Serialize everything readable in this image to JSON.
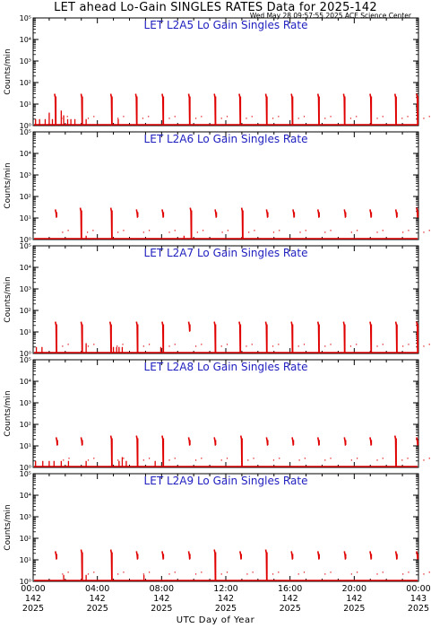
{
  "header": {
    "title": "LET ahead Lo-Gain SINGLES RATES Data for 2025-142",
    "timestamp": "Wed May 28 09:57:55 2025 ACE Science Center"
  },
  "colors": {
    "data": "#e00000",
    "panel_title": "#1f1fc0",
    "axes": "#000000"
  },
  "chart_data": [
    {
      "type": "line",
      "title": "LET L2A5 Lo Gain Singles Rate",
      "ylabel": "Counts/min",
      "yscale": "log",
      "ylim": [
        1,
        100000
      ],
      "xlim": [
        0,
        24
      ],
      "spikes": [
        {
          "x": 1.4,
          "y": 30,
          "base": 1
        },
        {
          "x": 3.05,
          "y": 30,
          "base": 1
        },
        {
          "x": 4.9,
          "y": 30,
          "base": 1
        },
        {
          "x": 6.45,
          "y": 30,
          "base": 1
        },
        {
          "x": 8.1,
          "y": 30,
          "base": 1
        },
        {
          "x": 9.75,
          "y": 30,
          "base": 1
        },
        {
          "x": 11.35,
          "y": 30,
          "base": 1
        },
        {
          "x": 12.9,
          "y": 30,
          "base": 1
        },
        {
          "x": 14.55,
          "y": 30,
          "base": 1
        },
        {
          "x": 16.15,
          "y": 30,
          "base": 1
        },
        {
          "x": 17.8,
          "y": 30,
          "base": 1
        },
        {
          "x": 19.4,
          "y": 30,
          "base": 1
        },
        {
          "x": 21.05,
          "y": 30,
          "base": 1
        },
        {
          "x": 22.6,
          "y": 30,
          "base": 1
        },
        {
          "x": 23.95,
          "y": 30,
          "base": 1
        }
      ],
      "bursts": [
        {
          "x": 0.15,
          "y": 2
        },
        {
          "x": 0.4,
          "y": 2
        },
        {
          "x": 0.75,
          "y": 2
        },
        {
          "x": 1.0,
          "y": 4
        },
        {
          "x": 1.2,
          "y": 2
        },
        {
          "x": 1.75,
          "y": 5
        },
        {
          "x": 1.9,
          "y": 3
        },
        {
          "x": 2.15,
          "y": 2
        },
        {
          "x": 2.35,
          "y": 2
        },
        {
          "x": 2.6,
          "y": 2
        },
        {
          "x": 3.3,
          "y": 2
        },
        {
          "x": 5.3,
          "y": 2
        }
      ]
    },
    {
      "type": "line",
      "title": "LET L2A6 Lo Gain Singles Rate",
      "ylabel": "Counts/min",
      "yscale": "log",
      "ylim": [
        1,
        100000
      ],
      "xlim": [
        0,
        24
      ],
      "spikes": [
        {
          "x": 1.45,
          "y": 25,
          "base": 10
        },
        {
          "x": 3.0,
          "y": 30,
          "base": 1
        },
        {
          "x": 4.9,
          "y": 30,
          "base": 1
        },
        {
          "x": 6.5,
          "y": 25,
          "base": 10
        },
        {
          "x": 8.1,
          "y": 25,
          "base": 10
        },
        {
          "x": 9.85,
          "y": 30,
          "base": 1
        },
        {
          "x": 11.4,
          "y": 25,
          "base": 10
        },
        {
          "x": 13.05,
          "y": 30,
          "base": 1
        },
        {
          "x": 14.6,
          "y": 25,
          "base": 10
        },
        {
          "x": 16.25,
          "y": 25,
          "base": 10
        },
        {
          "x": 17.8,
          "y": 25,
          "base": 10
        },
        {
          "x": 19.45,
          "y": 25,
          "base": 10
        },
        {
          "x": 21.05,
          "y": 25,
          "base": 10
        },
        {
          "x": 22.65,
          "y": 25,
          "base": 10
        },
        {
          "x": 23.95,
          "y": 30,
          "base": 10
        }
      ],
      "bursts": [
        {
          "x": 3.3,
          "y": 1.5
        },
        {
          "x": 9.4,
          "y": 1.5
        }
      ]
    },
    {
      "type": "line",
      "title": "LET L2A7 Lo Gain Singles Rate",
      "ylabel": "Counts/min",
      "yscale": "log",
      "ylim": [
        1,
        100000
      ],
      "xlim": [
        0,
        24
      ],
      "spikes": [
        {
          "x": 1.45,
          "y": 30,
          "base": 1
        },
        {
          "x": 3.05,
          "y": 30,
          "base": 1
        },
        {
          "x": 4.85,
          "y": 30,
          "base": 1
        },
        {
          "x": 6.5,
          "y": 30,
          "base": 1
        },
        {
          "x": 8.1,
          "y": 30,
          "base": 1
        },
        {
          "x": 9.75,
          "y": 30,
          "base": 10
        },
        {
          "x": 11.35,
          "y": 30,
          "base": 1
        },
        {
          "x": 12.9,
          "y": 30,
          "base": 1
        },
        {
          "x": 14.55,
          "y": 30,
          "base": 1
        },
        {
          "x": 16.15,
          "y": 30,
          "base": 1
        },
        {
          "x": 17.8,
          "y": 30,
          "base": 1
        },
        {
          "x": 19.4,
          "y": 30,
          "base": 1
        },
        {
          "x": 21.05,
          "y": 30,
          "base": 1
        },
        {
          "x": 22.65,
          "y": 30,
          "base": 1
        },
        {
          "x": 23.95,
          "y": 30,
          "base": 1
        }
      ],
      "bursts": [
        {
          "x": 0.2,
          "y": 2
        },
        {
          "x": 0.55,
          "y": 2
        },
        {
          "x": 3.3,
          "y": 3
        },
        {
          "x": 5.0,
          "y": 2
        },
        {
          "x": 5.2,
          "y": 2
        },
        {
          "x": 5.35,
          "y": 2
        },
        {
          "x": 5.55,
          "y": 2
        },
        {
          "x": 7.95,
          "y": 2
        }
      ]
    },
    {
      "type": "line",
      "title": "LET L2A8 Lo Gain Singles Rate",
      "ylabel": "Counts/min",
      "yscale": "log",
      "ylim": [
        1,
        100000
      ],
      "xlim": [
        0,
        24
      ],
      "spikes": [
        {
          "x": 1.5,
          "y": 25,
          "base": 10
        },
        {
          "x": 3.05,
          "y": 25,
          "base": 10
        },
        {
          "x": 4.9,
          "y": 30,
          "base": 1
        },
        {
          "x": 6.5,
          "y": 30,
          "base": 1
        },
        {
          "x": 8.1,
          "y": 30,
          "base": 1
        },
        {
          "x": 9.75,
          "y": 25,
          "base": 10
        },
        {
          "x": 11.35,
          "y": 25,
          "base": 10
        },
        {
          "x": 13.0,
          "y": 30,
          "base": 1
        },
        {
          "x": 14.6,
          "y": 25,
          "base": 10
        },
        {
          "x": 16.2,
          "y": 25,
          "base": 10
        },
        {
          "x": 17.8,
          "y": 25,
          "base": 10
        },
        {
          "x": 19.45,
          "y": 25,
          "base": 10
        },
        {
          "x": 21.05,
          "y": 25,
          "base": 10
        },
        {
          "x": 22.6,
          "y": 30,
          "base": 1
        },
        {
          "x": 23.95,
          "y": 25,
          "base": 10
        }
      ],
      "bursts": [
        {
          "x": 0.15,
          "y": 2
        },
        {
          "x": 0.6,
          "y": 2
        },
        {
          "x": 1.0,
          "y": 2
        },
        {
          "x": 1.3,
          "y": 2
        },
        {
          "x": 1.75,
          "y": 2
        },
        {
          "x": 2.2,
          "y": 2
        },
        {
          "x": 3.3,
          "y": 2
        },
        {
          "x": 5.35,
          "y": 2
        },
        {
          "x": 5.55,
          "y": 3
        },
        {
          "x": 5.8,
          "y": 2
        },
        {
          "x": 7.6,
          "y": 2
        }
      ]
    },
    {
      "type": "line",
      "title": "LET L2A9 Lo Gain Singles Rate",
      "ylabel": "Counts/min",
      "yscale": "log",
      "ylim": [
        1,
        100000
      ],
      "xlim": [
        0,
        24
      ],
      "spikes": [
        {
          "x": 1.45,
          "y": 25,
          "base": 10
        },
        {
          "x": 3.05,
          "y": 30,
          "base": 1
        },
        {
          "x": 4.9,
          "y": 30,
          "base": 1
        },
        {
          "x": 6.5,
          "y": 25,
          "base": 10
        },
        {
          "x": 8.1,
          "y": 25,
          "base": 10
        },
        {
          "x": 9.75,
          "y": 25,
          "base": 10
        },
        {
          "x": 11.35,
          "y": 30,
          "base": 1
        },
        {
          "x": 12.95,
          "y": 25,
          "base": 10
        },
        {
          "x": 14.55,
          "y": 30,
          "base": 1
        },
        {
          "x": 16.15,
          "y": 25,
          "base": 10
        },
        {
          "x": 17.8,
          "y": 25,
          "base": 10
        },
        {
          "x": 19.45,
          "y": 25,
          "base": 10
        },
        {
          "x": 21.05,
          "y": 25,
          "base": 10
        },
        {
          "x": 22.65,
          "y": 25,
          "base": 10
        },
        {
          "x": 23.95,
          "y": 25,
          "base": 10
        }
      ],
      "bursts": [
        {
          "x": 1.9,
          "y": 2
        },
        {
          "x": 3.3,
          "y": 2
        },
        {
          "x": 6.9,
          "y": 2
        }
      ]
    }
  ],
  "y_tick_labels": [
    "10⁰",
    "10¹",
    "10²",
    "10³",
    "10⁴",
    "10⁵"
  ],
  "x_axis": {
    "label": "UTC Day of Year",
    "ticks": [
      {
        "x": 0,
        "time": "00:00",
        "doy": "142",
        "year": "2025"
      },
      {
        "x": 4,
        "time": "04:00",
        "doy": "142",
        "year": "2025"
      },
      {
        "x": 8,
        "time": "08:00",
        "doy": "142",
        "year": "2025"
      },
      {
        "x": 12,
        "time": "12:00",
        "doy": "142",
        "year": "2025"
      },
      {
        "x": 16,
        "time": "16:00",
        "doy": "142",
        "year": "2025"
      },
      {
        "x": 20,
        "time": "20:00",
        "doy": "142",
        "year": "2025"
      },
      {
        "x": 24,
        "time": "00:00",
        "doy": "143",
        "year": "2025"
      }
    ]
  }
}
